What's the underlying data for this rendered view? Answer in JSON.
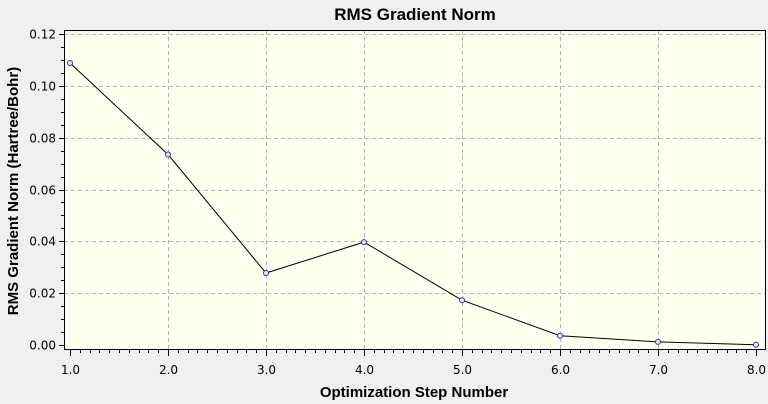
{
  "chart_data": {
    "type": "line",
    "title": "RMS Gradient Norm",
    "xlabel": "Optimization Step Number",
    "ylabel": "RMS Gradient Norm (Hartree/Bohr)",
    "x": [
      1,
      2,
      3,
      4,
      5,
      6,
      7,
      8
    ],
    "series": [
      {
        "values": [
          0.1088,
          0.0735,
          0.0278,
          0.0397,
          0.0173,
          0.0036,
          0.0012,
          0.0001
        ]
      }
    ],
    "xlim": [
      1,
      8
    ],
    "ylim": [
      0,
      0.12
    ],
    "x_ticks": [
      "1.0",
      "2.0",
      "3.0",
      "4.0",
      "5.0",
      "6.0",
      "7.0",
      "8.0"
    ],
    "y_ticks": [
      "0.00",
      "0.02",
      "0.04",
      "0.06",
      "0.08",
      "0.10",
      "0.12"
    ],
    "grid": true,
    "colors": {
      "plot_background": "#fffff0",
      "window_background": "#f0f0f0",
      "line": "#000000",
      "marker": "#2a2ad0",
      "grid": "#b4b4b4"
    }
  }
}
